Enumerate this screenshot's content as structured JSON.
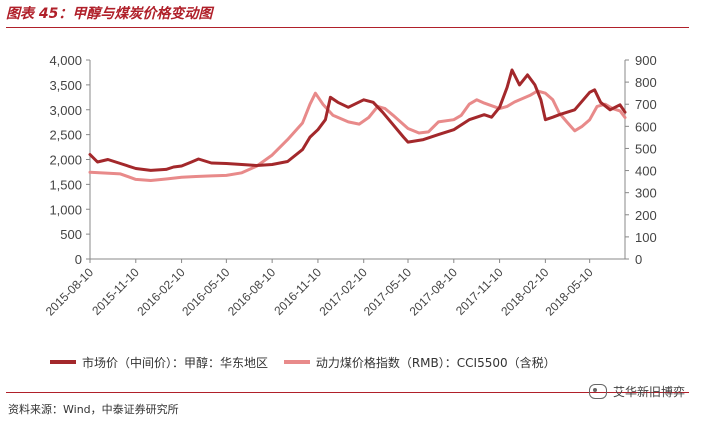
{
  "title": "图表 45：甲醇与煤炭价格变动图",
  "source": "资料来源：Wind，中泰证券研究所",
  "watermark": "艾华新旧博弈",
  "colors": {
    "methanol": "#a3282b",
    "coal": "#e88a8a",
    "accent": "#b0202a"
  },
  "chart_data": {
    "type": "line",
    "title": "",
    "xlabel": "",
    "ylabel_left": "",
    "ylabel_right": "",
    "x_ticks": [
      "2015-08-10",
      "2015-11-10",
      "2016-02-10",
      "2016-05-10",
      "2016-08-10",
      "2016-11-10",
      "2017-02-10",
      "2017-05-10",
      "2017-08-10",
      "2017-11-10",
      "2018-02-10",
      "2018-05-10"
    ],
    "x_range": [
      "2015-08-10",
      "2018-07-20"
    ],
    "ylim_left": [
      0,
      4000
    ],
    "yticks_left": [
      "0",
      "500",
      "1,000",
      "1,500",
      "2,000",
      "2,500",
      "3,000",
      "3,500",
      "4,000"
    ],
    "ylim_right": [
      0,
      900
    ],
    "yticks_right": [
      "0",
      "100",
      "200",
      "300",
      "400",
      "500",
      "600",
      "700",
      "800",
      "900"
    ],
    "grid": false,
    "legend_position": "bottom",
    "series": [
      {
        "name": "市场价（中间价）：甲醇：华东地区",
        "axis": "left",
        "color": "#a3282b",
        "points": [
          [
            "2015-08-10",
            2100
          ],
          [
            "2015-08-25",
            1950
          ],
          [
            "2015-09-15",
            2000
          ],
          [
            "2015-10-10",
            1920
          ],
          [
            "2015-11-10",
            1820
          ],
          [
            "2015-12-10",
            1780
          ],
          [
            "2016-01-10",
            1800
          ],
          [
            "2016-01-25",
            1850
          ],
          [
            "2016-02-10",
            1870
          ],
          [
            "2016-03-01",
            1950
          ],
          [
            "2016-03-15",
            2010
          ],
          [
            "2016-04-10",
            1930
          ],
          [
            "2016-05-10",
            1920
          ],
          [
            "2016-06-10",
            1900
          ],
          [
            "2016-07-10",
            1880
          ],
          [
            "2016-08-10",
            1900
          ],
          [
            "2016-09-10",
            1960
          ],
          [
            "2016-10-10",
            2200
          ],
          [
            "2016-10-25",
            2450
          ],
          [
            "2016-11-10",
            2600
          ],
          [
            "2016-11-25",
            2800
          ],
          [
            "2016-12-05",
            3250
          ],
          [
            "2016-12-20",
            3150
          ],
          [
            "2017-01-10",
            3050
          ],
          [
            "2017-02-10",
            3200
          ],
          [
            "2017-03-01",
            3150
          ],
          [
            "2017-03-20",
            2950
          ],
          [
            "2017-04-10",
            2700
          ],
          [
            "2017-05-01",
            2450
          ],
          [
            "2017-05-10",
            2350
          ],
          [
            "2017-06-10",
            2400
          ],
          [
            "2017-07-10",
            2500
          ],
          [
            "2017-08-10",
            2600
          ],
          [
            "2017-09-10",
            2800
          ],
          [
            "2017-10-10",
            2900
          ],
          [
            "2017-10-25",
            2850
          ],
          [
            "2017-11-10",
            3050
          ],
          [
            "2017-11-25",
            3450
          ],
          [
            "2017-12-05",
            3800
          ],
          [
            "2017-12-20",
            3500
          ],
          [
            "2018-01-05",
            3700
          ],
          [
            "2018-01-20",
            3500
          ],
          [
            "2018-02-01",
            3200
          ],
          [
            "2018-02-10",
            2800
          ],
          [
            "2018-02-25",
            2850
          ],
          [
            "2018-03-10",
            2900
          ],
          [
            "2018-04-10",
            3000
          ],
          [
            "2018-05-10",
            3350
          ],
          [
            "2018-05-20",
            3400
          ],
          [
            "2018-06-01",
            3150
          ],
          [
            "2018-06-20",
            3000
          ],
          [
            "2018-07-10",
            3100
          ],
          [
            "2018-07-20",
            2950
          ]
        ]
      },
      {
        "name": "动力煤价格指数（RMB）：CCI5500（含税）",
        "axis": "right",
        "color": "#e88a8a",
        "points": [
          [
            "2015-08-10",
            392
          ],
          [
            "2015-10-10",
            385
          ],
          [
            "2015-11-10",
            360
          ],
          [
            "2015-12-10",
            355
          ],
          [
            "2016-01-10",
            362
          ],
          [
            "2016-02-10",
            370
          ],
          [
            "2016-03-10",
            373
          ],
          [
            "2016-04-10",
            376
          ],
          [
            "2016-05-10",
            378
          ],
          [
            "2016-06-10",
            390
          ],
          [
            "2016-07-10",
            420
          ],
          [
            "2016-08-10",
            470
          ],
          [
            "2016-09-10",
            540
          ],
          [
            "2016-10-10",
            615
          ],
          [
            "2016-10-25",
            700
          ],
          [
            "2016-11-05",
            750
          ],
          [
            "2016-11-20",
            700
          ],
          [
            "2016-12-10",
            650
          ],
          [
            "2017-01-10",
            620
          ],
          [
            "2017-02-01",
            610
          ],
          [
            "2017-02-20",
            640
          ],
          [
            "2017-03-10",
            690
          ],
          [
            "2017-03-25",
            680
          ],
          [
            "2017-04-10",
            650
          ],
          [
            "2017-05-10",
            590
          ],
          [
            "2017-06-01",
            570
          ],
          [
            "2017-06-20",
            575
          ],
          [
            "2017-07-10",
            620
          ],
          [
            "2017-08-10",
            630
          ],
          [
            "2017-08-25",
            650
          ],
          [
            "2017-09-10",
            700
          ],
          [
            "2017-09-25",
            720
          ],
          [
            "2017-10-10",
            705
          ],
          [
            "2017-11-10",
            680
          ],
          [
            "2017-11-25",
            690
          ],
          [
            "2017-12-10",
            710
          ],
          [
            "2018-01-10",
            740
          ],
          [
            "2018-01-25",
            760
          ],
          [
            "2018-02-10",
            750
          ],
          [
            "2018-02-25",
            720
          ],
          [
            "2018-03-10",
            660
          ],
          [
            "2018-03-25",
            620
          ],
          [
            "2018-04-10",
            580
          ],
          [
            "2018-04-25",
            600
          ],
          [
            "2018-05-10",
            630
          ],
          [
            "2018-05-25",
            690
          ],
          [
            "2018-06-10",
            700
          ],
          [
            "2018-06-25",
            680
          ],
          [
            "2018-07-10",
            670
          ],
          [
            "2018-07-20",
            640
          ]
        ]
      }
    ]
  }
}
